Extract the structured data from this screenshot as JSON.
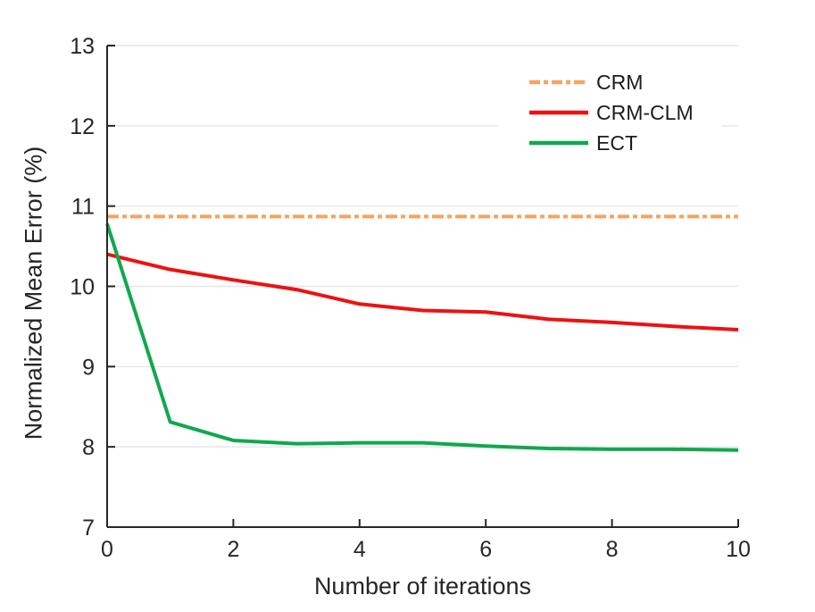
{
  "figure": {
    "background": "#FFFFFF",
    "text_color": "#262626",
    "grid_color": "#E6E6E6",
    "axis_color": "#262626"
  },
  "chart_data": {
    "type": "line",
    "title": "",
    "xlabel": "Number of iterations",
    "ylabel": "Normalized Mean Error (%)",
    "xlim": [
      0,
      10
    ],
    "ylim": [
      7,
      13
    ],
    "xticks": [
      0,
      2,
      4,
      6,
      8,
      10
    ],
    "yticks": [
      7,
      8,
      9,
      10,
      11,
      12,
      13
    ],
    "grid": "horizontal",
    "legend_position": "top-right-inside",
    "x": [
      0,
      1,
      2,
      3,
      4,
      5,
      6,
      7,
      8,
      9,
      10
    ],
    "series": [
      {
        "name": "CRM",
        "color": "#F4A460",
        "style": "dash-dot",
        "line_width": 4,
        "values": [
          10.87,
          10.87,
          10.87,
          10.87,
          10.87,
          10.87,
          10.87,
          10.87,
          10.87,
          10.87,
          10.87
        ]
      },
      {
        "name": "CRM-CLM",
        "color": "#EE1111",
        "style": "solid",
        "line_width": 4,
        "values": [
          10.4,
          10.21,
          10.08,
          9.96,
          9.78,
          9.7,
          9.68,
          9.59,
          9.55,
          9.5,
          9.46
        ]
      },
      {
        "name": "ECT",
        "color": "#10A84E",
        "style": "solid",
        "line_width": 4,
        "values": [
          10.78,
          8.31,
          8.08,
          8.04,
          8.05,
          8.05,
          8.01,
          7.98,
          7.97,
          7.97,
          7.96
        ]
      }
    ]
  }
}
